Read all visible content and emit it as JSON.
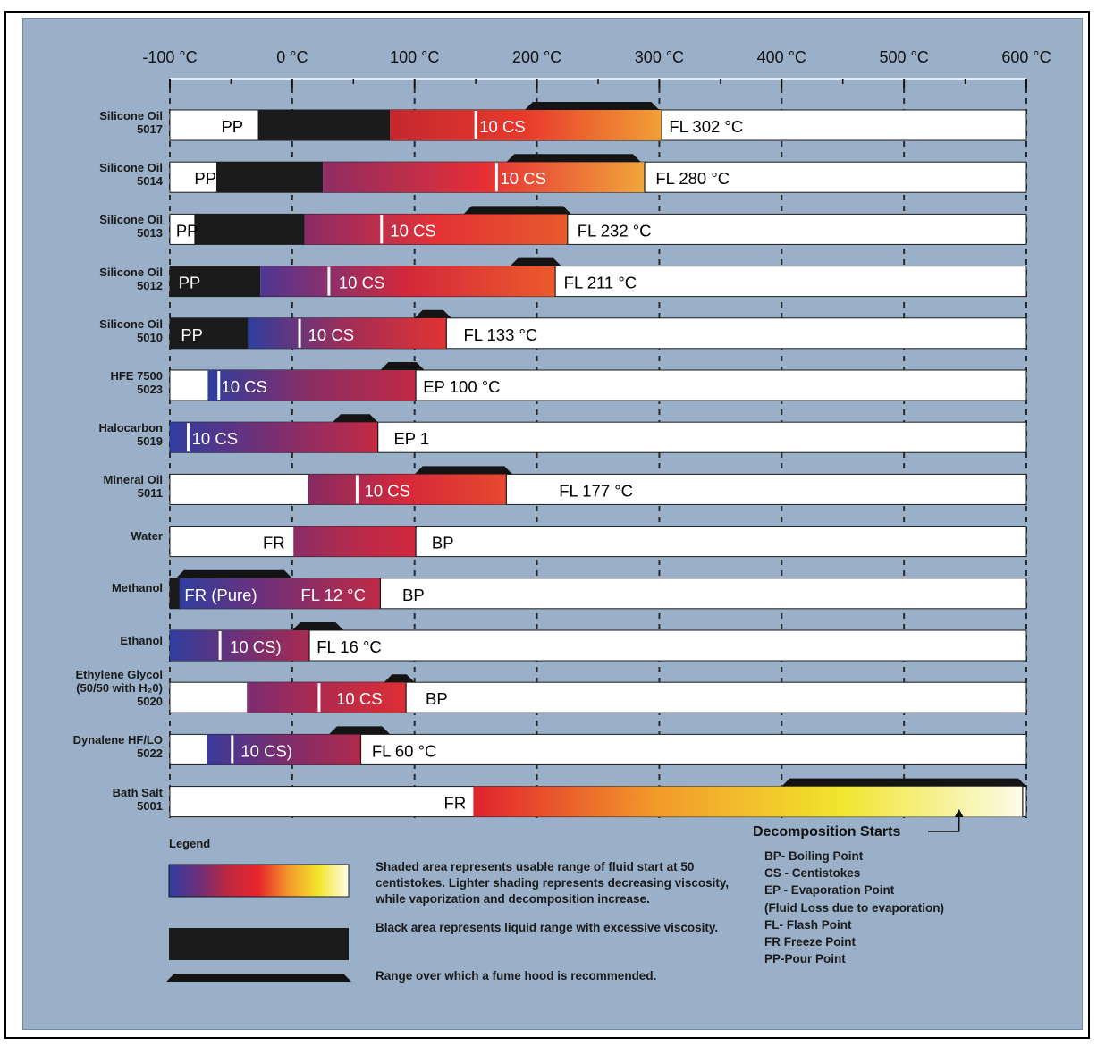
{
  "header": {
    "title": ""
  },
  "chart_data": {
    "type": "bar",
    "orientation": "horizontal",
    "title": "",
    "xlabel": "",
    "xlim": [
      -100,
      600
    ],
    "x_ticks": [
      -100,
      0,
      100,
      200,
      300,
      400,
      500,
      600
    ],
    "x_tick_labels": [
      "-100 °C",
      "0 °C",
      "100 °C",
      "200 °C",
      "300 °C",
      "400 °C",
      "500 °C",
      "600 °C"
    ],
    "rows": [
      {
        "name": "Silicone Oil",
        "code": "5017",
        "black": [
          -28,
          80
        ],
        "shaded": [
          80,
          302
        ],
        "cs_marker": 150,
        "shade_colors": [
          "#c4272f",
          "#e83a2c",
          "#f1a135"
        ],
        "hood": [
          190,
          300
        ],
        "labels": [
          {
            "text": "PP",
            "x": -58,
            "color": "#000"
          },
          {
            "text": "10 CS",
            "x": 153,
            "color": "#fff"
          },
          {
            "text": "FL 302 °C",
            "x": 308,
            "color": "#000"
          }
        ]
      },
      {
        "name": "Silicone Oil",
        "code": "5014",
        "black": [
          -62,
          25
        ],
        "shaded": [
          25,
          288
        ],
        "cs_marker": 167,
        "shade_colors": [
          "#8e2d63",
          "#e62e35",
          "#f1a63a"
        ],
        "hood": [
          175,
          285
        ],
        "labels": [
          {
            "text": "PP",
            "x": -80,
            "color": "#000"
          },
          {
            "text": "10 CS",
            "x": 170,
            "color": "#fff"
          },
          {
            "text": "FL 280 °C",
            "x": 297,
            "color": "#000"
          }
        ]
      },
      {
        "name": "Silicone Oil",
        "code": "5013",
        "black": [
          -80,
          10
        ],
        "shaded": [
          10,
          225
        ],
        "cs_marker": 73,
        "shade_colors": [
          "#8b2b66",
          "#e23236",
          "#e85a2c"
        ],
        "hood": [
          140,
          228
        ],
        "labels": [
          {
            "text": "PP",
            "x": -95,
            "color": "#000"
          },
          {
            "text": "10 CS",
            "x": 80,
            "color": "#fff"
          },
          {
            "text": "FL 232 °C",
            "x": 233,
            "color": "#000"
          }
        ]
      },
      {
        "name": "Silicone Oil",
        "code": "5012",
        "black": [
          -100,
          -26
        ],
        "shaded": [
          -26,
          215
        ],
        "cs_marker": 30,
        "shade_colors": [
          "#4e3694",
          "#d4283b",
          "#ec5a2c"
        ],
        "hood": [
          178,
          220
        ],
        "labels": [
          {
            "text": "PP",
            "x": -93,
            "color": "#fff"
          },
          {
            "text": "10 CS",
            "x": 38,
            "color": "#fff"
          },
          {
            "text": "FL 211 °C",
            "x": 222,
            "color": "#000"
          }
        ]
      },
      {
        "name": "Silicone Oil",
        "code": "5010",
        "black": [
          -100,
          -36
        ],
        "shaded": [
          -36,
          126
        ],
        "cs_marker": 6,
        "shade_colors": [
          "#2f3e9f",
          "#a22d55",
          "#e23333"
        ],
        "hood": [
          100,
          130
        ],
        "labels": [
          {
            "text": "PP",
            "x": -91,
            "color": "#fff"
          },
          {
            "text": "10 CS",
            "x": 13,
            "color": "#fff"
          },
          {
            "text": "FL 133 °C",
            "x": 140,
            "color": "#000"
          }
        ]
      },
      {
        "name": "HFE 7500",
        "code": "5023",
        "black": null,
        "shaded": [
          -69,
          101
        ],
        "cs_marker": -60,
        "shade_colors": [
          "#2f3e9f",
          "#8c2d63",
          "#c02a45"
        ],
        "hood": [
          72,
          108
        ],
        "labels": [
          {
            "text": "10 CS",
            "x": -58,
            "color": "#fff"
          },
          {
            "text": "EP 100 °C",
            "x": 107,
            "color": "#000"
          }
        ]
      },
      {
        "name": "Halocarbon",
        "code": "5019",
        "black": null,
        "shaded": [
          -100,
          70
        ],
        "cs_marker": -85,
        "shade_colors": [
          "#2f3e9f",
          "#7a2e70",
          "#c42a44"
        ],
        "hood": [
          33,
          70
        ],
        "labels": [
          {
            "text": "10 CS",
            "x": -82,
            "color": "#fff"
          },
          {
            "text": "EP 1",
            "x": 83,
            "color": "#000"
          }
        ]
      },
      {
        "name": "Mineral Oil",
        "code": "5011",
        "black": null,
        "shaded": [
          13,
          175
        ],
        "cs_marker": 53,
        "shade_colors": [
          "#862a62",
          "#d52a3a",
          "#e8482f"
        ],
        "hood": [
          100,
          180
        ],
        "labels": [
          {
            "text": "10 CS",
            "x": 59,
            "color": "#fff"
          },
          {
            "text": "FL 177 °C",
            "x": 218,
            "color": "#000"
          }
        ]
      },
      {
        "name": "Water",
        "code": "",
        "black": null,
        "shaded": [
          1,
          101
        ],
        "cs_marker": null,
        "shade_colors": [
          "#8a2c65",
          "#b52b4b",
          "#d0283c"
        ],
        "hood": null,
        "labels": [
          {
            "text": "FR",
            "x": -24,
            "color": "#000"
          },
          {
            "text": "BP",
            "x": 114,
            "color": "#000"
          }
        ]
      },
      {
        "name": "Methanol",
        "code": "",
        "black": [
          -100,
          -92
        ],
        "shaded": [
          -92,
          72
        ],
        "cs_marker": null,
        "shade_colors": [
          "#2f3e9f",
          "#7b2e72",
          "#c02a45"
        ],
        "hood": [
          -95,
          0
        ],
        "labels": [
          {
            "text": "FR (Pure)",
            "x": -88,
            "color": "#fff"
          },
          {
            "text": "FL 12 °C",
            "x": 7,
            "color": "#fff"
          },
          {
            "text": "BP",
            "x": 90,
            "color": "#000"
          }
        ]
      },
      {
        "name": "Ethanol",
        "code": "",
        "black": null,
        "shaded": [
          -100,
          14
        ],
        "cs_marker": -59,
        "shade_colors": [
          "#2f3e9f",
          "#6e3077",
          "#a82b4f"
        ],
        "hood": [
          0,
          42
        ],
        "labels": [
          {
            "text": "10 CS)",
            "x": -51,
            "color": "#fff"
          },
          {
            "text": "FL 16 °C",
            "x": 20,
            "color": "#000"
          }
        ]
      },
      {
        "name": "Ethylene Glycol",
        "code": "5020",
        "name2": "(50/50 with H₂0)",
        "black": null,
        "shaded": [
          -37,
          93
        ],
        "cs_marker": 22,
        "shade_colors": [
          "#7a2c72",
          "#b42a4c",
          "#de2e34"
        ],
        "hood": [
          75,
          100
        ],
        "labels": [
          {
            "text": "10 CS",
            "x": 36,
            "color": "#fff"
          },
          {
            "text": "BP",
            "x": 109,
            "color": "#000"
          }
        ]
      },
      {
        "name": "Dynalene HF/LO",
        "code": "5022",
        "black": null,
        "shaded": [
          -70,
          56
        ],
        "cs_marker": -49,
        "shade_colors": [
          "#3a3a9a",
          "#7c2d6c",
          "#b02a4c"
        ],
        "hood": [
          30,
          80
        ],
        "labels": [
          {
            "text": "10 CS)",
            "x": -42,
            "color": "#fff"
          },
          {
            "text": "FL 60 °C",
            "x": 65,
            "color": "#000"
          }
        ]
      },
      {
        "name": "Bath Salt",
        "code": "5001",
        "black": null,
        "shaded": [
          148,
          597
        ],
        "cs_marker": null,
        "shade_colors": [
          "#e1222e",
          "#f29a2a",
          "#f1e52d",
          "#fbfbe9"
        ],
        "hood": [
          400,
          600
        ],
        "labels": [
          {
            "text": "FR",
            "x": 124,
            "color": "#000"
          }
        ]
      }
    ],
    "decomposition_label": "Decomposition Starts",
    "decomposition_x": 545
  },
  "legend": {
    "title": "Legend",
    "gradient_colors": [
      "#2f3e9f",
      "#6d2f79",
      "#c0283f",
      "#e8262c",
      "#f29a2a",
      "#f2e52c",
      "#fdfde8"
    ],
    "shaded_text": "Shaded area represents usable range of fluid start at 50 centistokes. Lighter shading represents decreasing viscosity, while vaporization and decomposition increase.",
    "black_text": "Black area represents liquid range with excessive viscosity.",
    "hood_text": "Range over which a fume hood is recommended."
  },
  "abbreviations": {
    "items": [
      "BP- Boiling Point",
      "CS - Centistokes",
      "EP - Evaporation Point",
      "(Fluid Loss due to evaporation)",
      "FL- Flash Point",
      "FR Freeze Point",
      "PP-Pour Point"
    ]
  }
}
